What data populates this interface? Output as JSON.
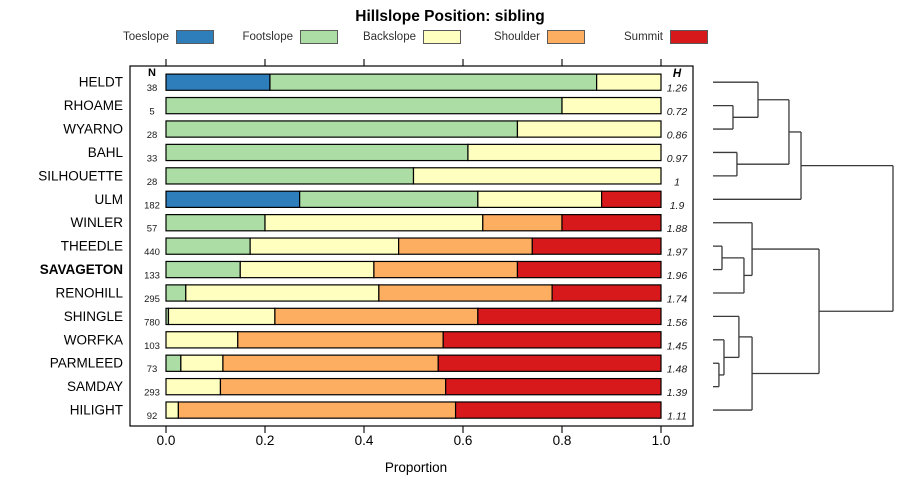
{
  "chart_data": {
    "type": "bar",
    "variant": "horizontal-stacked-with-dendrogram",
    "title": "Hillslope Position: sibling",
    "xlabel": "Proportion",
    "xlim": [
      0,
      1
    ],
    "x_ticks": [
      "0.0",
      "0.2",
      "0.4",
      "0.6",
      "0.8",
      "1.0"
    ],
    "grid": false,
    "legend_position": "top",
    "legend": [
      {
        "label": "Toeslope",
        "color": "#2e7ebc"
      },
      {
        "label": "Footslope",
        "color": "#abdda4"
      },
      {
        "label": "Backslope",
        "color": "#ffffbf"
      },
      {
        "label": "Shoulder",
        "color": "#fdae61"
      },
      {
        "label": "Summit",
        "color": "#d7191c"
      }
    ],
    "n_column_header": "N",
    "h_column_header": "H",
    "rows": [
      {
        "name": "HELDT",
        "bold": false,
        "n": "38",
        "h": "1.26",
        "proportions": [
          0.21,
          0.66,
          0.13,
          0,
          0
        ]
      },
      {
        "name": "RHOAME",
        "bold": false,
        "n": "5",
        "h": "0.72",
        "proportions": [
          0,
          0.8,
          0.2,
          0,
          0
        ]
      },
      {
        "name": "WYARNO",
        "bold": false,
        "n": "28",
        "h": "0.86",
        "proportions": [
          0,
          0.71,
          0.29,
          0,
          0
        ]
      },
      {
        "name": "BAHL",
        "bold": false,
        "n": "33",
        "h": "0.97",
        "proportions": [
          0,
          0.61,
          0.39,
          0,
          0
        ]
      },
      {
        "name": "SILHOUETTE",
        "bold": false,
        "n": "28",
        "h": "1",
        "proportions": [
          0,
          0.5,
          0.5,
          0,
          0
        ]
      },
      {
        "name": "ULM",
        "bold": false,
        "n": "182",
        "h": "1.9",
        "proportions": [
          0.27,
          0.36,
          0.25,
          0,
          0.12
        ]
      },
      {
        "name": "WINLER",
        "bold": false,
        "n": "57",
        "h": "1.88",
        "proportions": [
          0,
          0.2,
          0.44,
          0.16,
          0.2
        ]
      },
      {
        "name": "THEEDLE",
        "bold": false,
        "n": "440",
        "h": "1.97",
        "proportions": [
          0,
          0.17,
          0.3,
          0.27,
          0.26
        ]
      },
      {
        "name": "SAVAGETON",
        "bold": true,
        "n": "133",
        "h": "1.96",
        "proportions": [
          0,
          0.15,
          0.27,
          0.29,
          0.29
        ]
      },
      {
        "name": "RENOHILL",
        "bold": false,
        "n": "295",
        "h": "1.74",
        "proportions": [
          0,
          0.04,
          0.39,
          0.35,
          0.22
        ]
      },
      {
        "name": "SHINGLE",
        "bold": false,
        "n": "780",
        "h": "1.56",
        "proportions": [
          0,
          0.005,
          0.215,
          0.41,
          0.37
        ]
      },
      {
        "name": "WORFKA",
        "bold": false,
        "n": "103",
        "h": "1.45",
        "proportions": [
          0,
          0,
          0.145,
          0.415,
          0.44
        ]
      },
      {
        "name": "PARMLEED",
        "bold": false,
        "n": "73",
        "h": "1.48",
        "proportions": [
          0,
          0.03,
          0.085,
          0.435,
          0.45
        ]
      },
      {
        "name": "SAMDAY",
        "bold": false,
        "n": "293",
        "h": "1.39",
        "proportions": [
          0,
          0,
          0.11,
          0.455,
          0.435
        ]
      },
      {
        "name": "HILIGHT",
        "bold": false,
        "n": "92",
        "h": "1.11",
        "proportions": [
          0,
          0,
          0.025,
          0.56,
          0.415
        ]
      }
    ],
    "dendrogram": {
      "h": 1.0,
      "children": [
        {
          "h": 0.489,
          "children": [
            {
              "h": 0.422,
              "children": [
                {
                  "h": 0.25,
                  "children": [
                    {
                      "leaf": "HELDT"
                    },
                    {
                      "h": 0.111,
                      "children": [
                        {
                          "leaf": "RHOAME"
                        },
                        {
                          "leaf": "WYARNO"
                        }
                      ]
                    }
                  ]
                },
                {
                  "h": 0.133,
                  "children": [
                    {
                      "leaf": "BAHL"
                    },
                    {
                      "leaf": "SILHOUETTE"
                    }
                  ]
                }
              ]
            },
            {
              "leaf": "ULM"
            }
          ]
        },
        {
          "h": 0.589,
          "children": [
            {
              "h": 0.217,
              "children": [
                {
                  "leaf": "WINLER"
                },
                {
                  "h": 0.172,
                  "children": [
                    {
                      "h": 0.05,
                      "children": [
                        {
                          "leaf": "THEEDLE"
                        },
                        {
                          "leaf": "SAVAGETON"
                        }
                      ]
                    },
                    {
                      "leaf": "RENOHILL"
                    }
                  ]
                }
              ]
            },
            {
              "h": 0.217,
              "children": [
                {
                  "h": 0.144,
                  "children": [
                    {
                      "leaf": "SHINGLE"
                    },
                    {
                      "h": 0.061,
                      "children": [
                        {
                          "leaf": "WORFKA"
                        },
                        {
                          "h": 0.033,
                          "children": [
                            {
                              "leaf": "PARMLEED"
                            },
                            {
                              "leaf": "SAMDAY"
                            }
                          ]
                        }
                      ]
                    }
                  ]
                },
                {
                  "leaf": "HILIGHT"
                }
              ]
            }
          ]
        }
      ]
    }
  }
}
